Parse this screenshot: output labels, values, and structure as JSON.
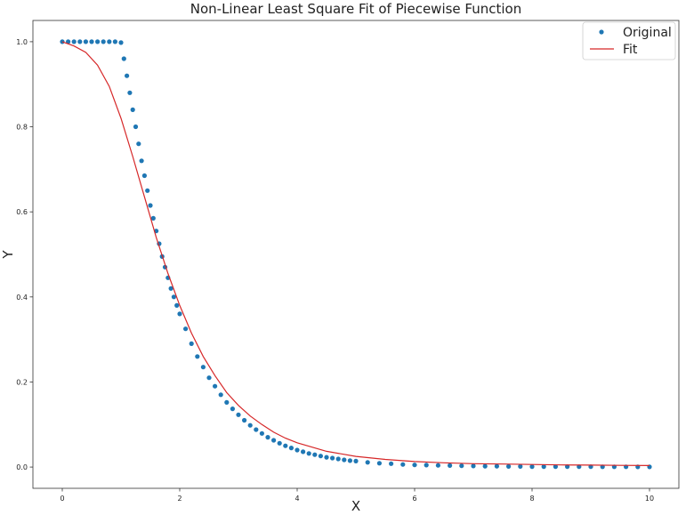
{
  "chart_data": {
    "type": "scatter",
    "title": "Non-Linear Least Square Fit of Piecewise Function",
    "xlabel": "X",
    "ylabel": "Y",
    "xlim": [
      -0.5,
      10.5
    ],
    "ylim": [
      -0.05,
      1.05
    ],
    "grid": false,
    "legend_position": "top-right",
    "x_ticks": [
      "0",
      "2",
      "4",
      "6",
      "8",
      "10"
    ],
    "x_tick_values": [
      0,
      2,
      4,
      6,
      8,
      10
    ],
    "y_ticks": [
      "0.0",
      "0.2",
      "0.4",
      "0.6",
      "0.8",
      "1.0"
    ],
    "y_tick_values": [
      0.0,
      0.2,
      0.4,
      0.6,
      0.8,
      1.0
    ],
    "series": [
      {
        "name": "Original",
        "kind": "scatter",
        "color": "#1f77b4",
        "x": [
          0,
          0.1,
          0.2,
          0.3,
          0.4,
          0.5,
          0.6,
          0.7,
          0.8,
          0.9,
          1.0,
          1.05,
          1.1,
          1.15,
          1.2,
          1.25,
          1.3,
          1.35,
          1.4,
          1.45,
          1.5,
          1.55,
          1.6,
          1.65,
          1.7,
          1.75,
          1.8,
          1.85,
          1.9,
          1.95,
          2.0,
          2.1,
          2.2,
          2.3,
          2.4,
          2.5,
          2.6,
          2.7,
          2.8,
          2.9,
          3.0,
          3.1,
          3.2,
          3.3,
          3.4,
          3.5,
          3.6,
          3.7,
          3.8,
          3.9,
          4.0,
          4.1,
          4.2,
          4.3,
          4.4,
          4.5,
          4.6,
          4.7,
          4.8,
          4.9,
          5.0,
          5.2,
          5.4,
          5.6,
          5.8,
          6.0,
          6.2,
          6.4,
          6.6,
          6.8,
          7.0,
          7.2,
          7.4,
          7.6,
          7.8,
          8.0,
          8.2,
          8.4,
          8.6,
          8.8,
          9.0,
          9.2,
          9.4,
          9.6,
          9.8,
          10.0
        ],
        "y": [
          1.0,
          1.0,
          1.0,
          1.0,
          1.0,
          1.0,
          1.0,
          1.0,
          1.0,
          1.0,
          0.998,
          0.96,
          0.92,
          0.88,
          0.84,
          0.8,
          0.76,
          0.72,
          0.685,
          0.65,
          0.615,
          0.585,
          0.555,
          0.525,
          0.495,
          0.47,
          0.445,
          0.42,
          0.4,
          0.38,
          0.36,
          0.325,
          0.29,
          0.26,
          0.235,
          0.21,
          0.19,
          0.17,
          0.152,
          0.137,
          0.123,
          0.11,
          0.098,
          0.088,
          0.079,
          0.07,
          0.063,
          0.056,
          0.05,
          0.045,
          0.04,
          0.036,
          0.032,
          0.029,
          0.026,
          0.023,
          0.021,
          0.019,
          0.017,
          0.015,
          0.014,
          0.011,
          0.009,
          0.008,
          0.006,
          0.005,
          0.0045,
          0.004,
          0.0035,
          0.003,
          0.0025,
          0.002,
          0.002,
          0.0015,
          0.0015,
          0.001,
          0.001,
          0.001,
          0.001,
          0.0008,
          0.0008,
          0.0007,
          0.0006,
          0.0006,
          0.0005,
          0.0005
        ]
      },
      {
        "name": "Fit",
        "kind": "line",
        "color": "#d62728",
        "x": [
          0,
          0.2,
          0.4,
          0.6,
          0.8,
          1.0,
          1.2,
          1.4,
          1.6,
          1.8,
          2.0,
          2.2,
          2.4,
          2.6,
          2.8,
          3.0,
          3.2,
          3.4,
          3.6,
          3.8,
          4.0,
          4.5,
          5.0,
          5.5,
          6.0,
          6.5,
          7.0,
          7.5,
          8.0,
          8.5,
          9.0,
          9.5,
          10.0
        ],
        "y": [
          1.0,
          0.99,
          0.975,
          0.945,
          0.895,
          0.82,
          0.73,
          0.635,
          0.54,
          0.455,
          0.38,
          0.315,
          0.26,
          0.215,
          0.175,
          0.145,
          0.12,
          0.1,
          0.082,
          0.068,
          0.057,
          0.037,
          0.025,
          0.018,
          0.013,
          0.01,
          0.008,
          0.007,
          0.006,
          0.005,
          0.0045,
          0.004,
          0.0035
        ]
      }
    ]
  }
}
